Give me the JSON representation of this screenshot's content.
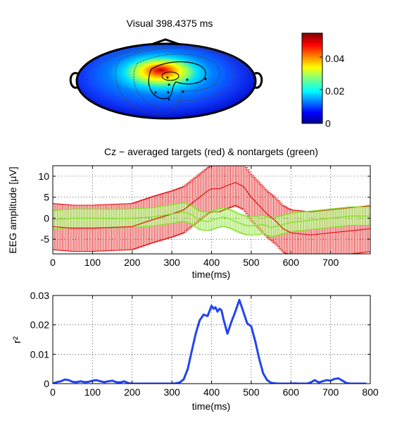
{
  "chart_data": [
    {
      "type": "heatmap",
      "title": "Visual 398.4375 ms",
      "colorbar": {
        "ticks": [
          "0",
          "0.02",
          "0.04"
        ],
        "range": [
          0,
          0.053
        ]
      }
    },
    {
      "type": "line",
      "title": "Cz − averaged targets (red) & nontargets (green)",
      "xlabel": "time(ms)",
      "ylabel": "EEG amplitude [μV]",
      "xlim": [
        0,
        800
      ],
      "ylim": [
        -8.5,
        12.5
      ],
      "xticks": [
        "0",
        "100",
        "200",
        "300",
        "400",
        "500",
        "600",
        "700"
      ],
      "yticks": [
        "-5",
        "0",
        "5",
        "10"
      ],
      "grid": true,
      "series": [
        {
          "name": "targets",
          "color": "#e01010",
          "x": [
            0,
            50,
            100,
            150,
            200,
            250,
            300,
            330,
            350,
            370,
            390,
            400,
            420,
            440,
            460,
            480,
            500,
            520,
            540,
            560,
            580,
            600,
            650,
            700,
            750,
            800
          ],
          "y": [
            -2,
            -2.4,
            -2.4,
            -2.2,
            -2,
            -0.4,
            1,
            2,
            3.5,
            5,
            6.5,
            7,
            7,
            7.8,
            8.5,
            7.6,
            5,
            3,
            1,
            -0.5,
            -2.5,
            -3.5,
            -4,
            -3.5,
            -3,
            -2.5
          ],
          "err": 5.5
        },
        {
          "name": "nontargets",
          "color": "#80e020",
          "x": [
            0,
            50,
            100,
            150,
            200,
            250,
            300,
            330,
            350,
            370,
            390,
            410,
            430,
            450,
            470,
            490,
            510,
            530,
            550,
            570,
            600,
            650,
            700,
            750,
            800
          ],
          "y": [
            -0.4,
            0,
            0,
            -0.1,
            0,
            0.3,
            1,
            1.5,
            0.8,
            -0.5,
            -0.8,
            -0.2,
            0.3,
            -0.3,
            -1.2,
            -1.8,
            -1.8,
            -1.5,
            -2.2,
            -1.8,
            -1,
            -0.5,
            0,
            0.5,
            0.5
          ],
          "err": 2.2
        }
      ]
    },
    {
      "type": "line",
      "xlabel": "time(ms)",
      "ylabel": "r²",
      "xlim": [
        0,
        800
      ],
      "ylim": [
        0,
        0.03
      ],
      "xticks": [
        "0",
        "100",
        "200",
        "300",
        "400",
        "500",
        "600",
        "700",
        "800"
      ],
      "yticks": [
        "0",
        "0.01",
        "0.02",
        "0.03"
      ],
      "grid": true,
      "series": [
        {
          "color": "#2244ee",
          "x": [
            0,
            10,
            20,
            30,
            40,
            50,
            60,
            70,
            80,
            90,
            100,
            110,
            120,
            130,
            140,
            150,
            160,
            170,
            180,
            190,
            200,
            210,
            220,
            230,
            240,
            250,
            260,
            270,
            280,
            290,
            300,
            310,
            320,
            330,
            340,
            350,
            360,
            370,
            380,
            390,
            400,
            405,
            410,
            415,
            420,
            425,
            430,
            440,
            450,
            460,
            470,
            480,
            490,
            500,
            510,
            520,
            530,
            540,
            550,
            560,
            570,
            580,
            590,
            600,
            610,
            620,
            630,
            640,
            650,
            660,
            670,
            680,
            690,
            700,
            710,
            720,
            730,
            740,
            750,
            760,
            770,
            780,
            790
          ],
          "y": [
            0,
            0.0005,
            0.0008,
            0.0014,
            0.0012,
            0.0006,
            0.0005,
            0.0008,
            0.0005,
            0.0006,
            0.001,
            0.0012,
            0.0008,
            0.0005,
            0.0008,
            0.001,
            0.0005,
            0.0004,
            0.0008,
            0.0002,
            0,
            0,
            0,
            0,
            0,
            0,
            0,
            0,
            0,
            0,
            0,
            0.0001,
            0.0004,
            0.0015,
            0.005,
            0.011,
            0.017,
            0.0215,
            0.0235,
            0.023,
            0.0265,
            0.0255,
            0.026,
            0.0245,
            0.0255,
            0.025,
            0.022,
            0.017,
            0.021,
            0.0245,
            0.0285,
            0.0245,
            0.0205,
            0.0195,
            0.0145,
            0.0085,
            0.0035,
            0.0012,
            0.0003,
            0.0001,
            0,
            0,
            0,
            0,
            0.0001,
            0,
            0,
            0,
            0.0004,
            0.0012,
            0.0004,
            0.0008,
            0.0012,
            0.001,
            0.0016,
            0.0018,
            0.001,
            0.0002,
            0,
            0,
            0,
            0,
            0
          ]
        }
      ]
    }
  ]
}
